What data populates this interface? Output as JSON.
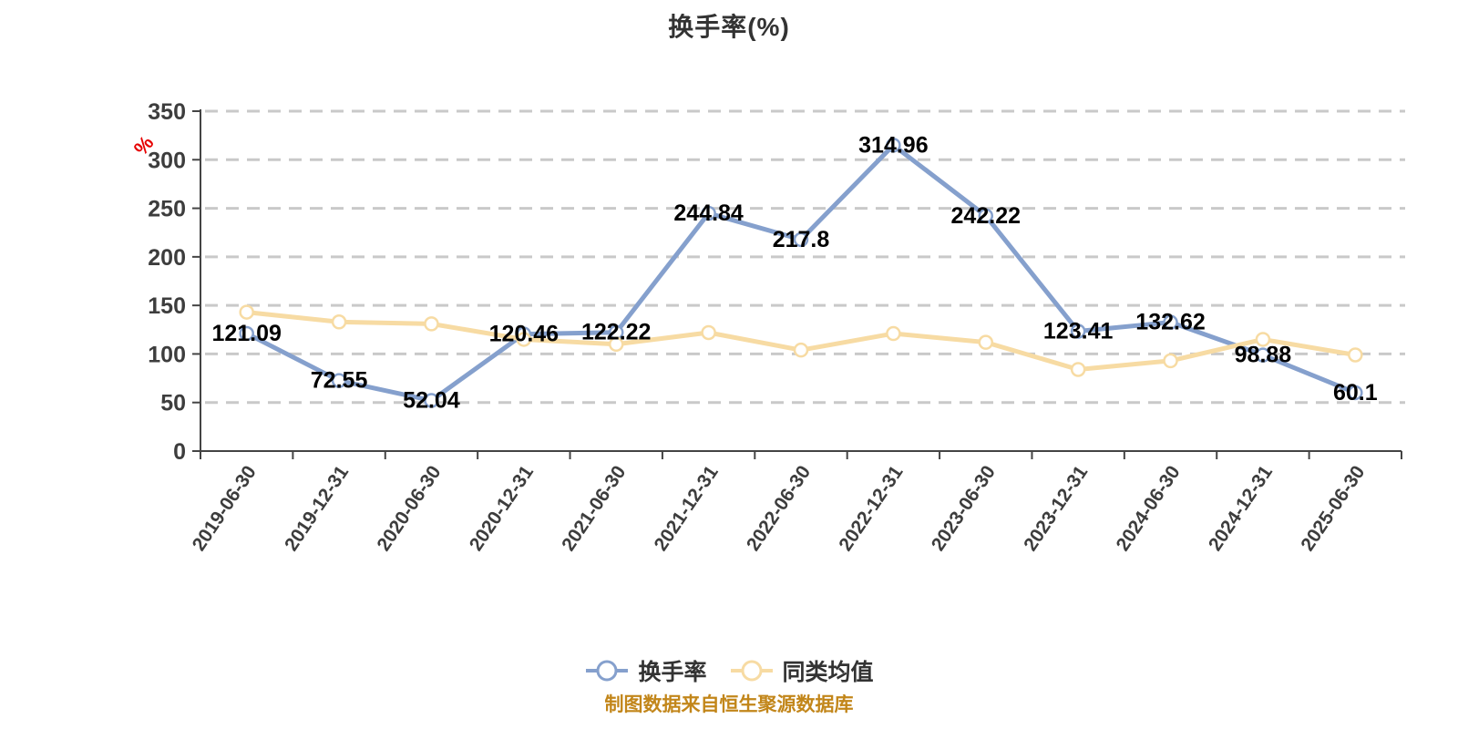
{
  "title": "换手率(%)",
  "footer": "制图数据来自恒生聚源数据库",
  "y_axis": {
    "unit_label": "%",
    "ticks": [
      0,
      50,
      100,
      150,
      200,
      250,
      300,
      350
    ]
  },
  "colors": {
    "turnover_line": "#85A0CD",
    "average_line": "#F7DBA3",
    "marker_fill": "#FFFFFF",
    "grid": "#C9C9C9",
    "axis": "#444444",
    "axis_label": "#3D3D3D",
    "data_label": "#000000",
    "title": "#333333",
    "legend_text": "#333333",
    "unit_label": "#E60000",
    "footer": "#C2861A",
    "background": "#FFFFFF"
  },
  "chart_data": {
    "type": "line",
    "title": "换手率(%)",
    "categories": [
      "2019-06-30",
      "2019-12-31",
      "2020-06-30",
      "2020-12-31",
      "2021-06-30",
      "2021-12-31",
      "2022-06-30",
      "2022-12-31",
      "2023-06-30",
      "2023-12-31",
      "2024-06-30",
      "2024-12-31",
      "2025-06-30"
    ],
    "series": [
      {
        "key": "turnover-rate",
        "name": "换手率",
        "color": "#85A0CD",
        "values": [
          121.09,
          72.55,
          52.04,
          120.46,
          122.22,
          244.84,
          217.8,
          314.96,
          242.22,
          123.41,
          132.62,
          98.88,
          60.1
        ],
        "show_labels": true
      },
      {
        "key": "category-average",
        "name": "同类均值",
        "color": "#F7DBA3",
        "values": [
          143,
          133,
          131,
          115,
          110,
          122,
          104,
          121,
          112,
          84,
          93,
          115,
          99
        ],
        "show_labels": false
      }
    ],
    "ylim": [
      0,
      350
    ],
    "xlabel": "",
    "ylabel": "%",
    "grid": "horizontal-dashed",
    "legend_position": "bottom"
  }
}
